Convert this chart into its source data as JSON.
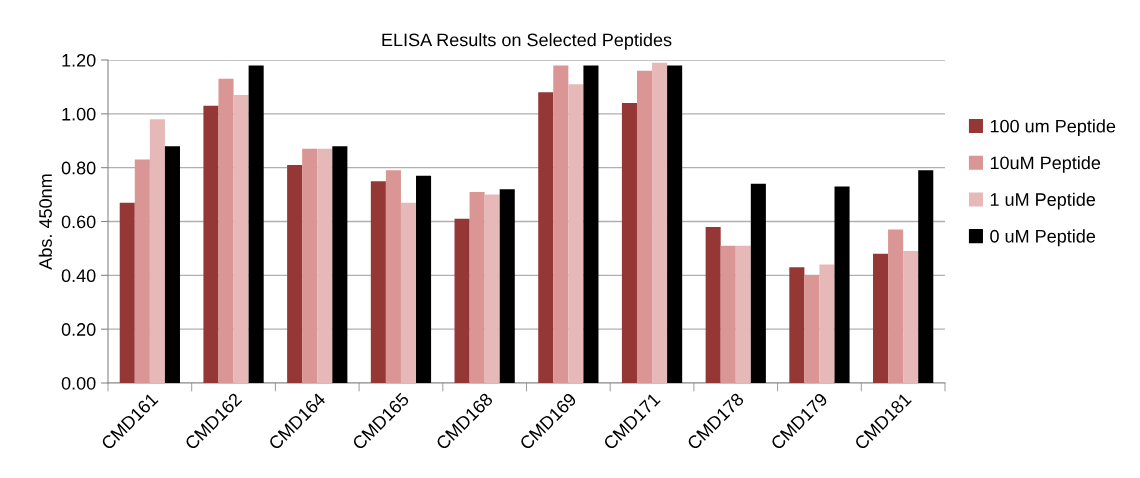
{
  "chart_data": {
    "type": "bar",
    "title": "ELISA Results on Selected Peptides",
    "ylabel": "Abs. 450nm",
    "categories": [
      "CMD161",
      "CMD162",
      "CMD164",
      "CMD165",
      "CMD168",
      "CMD169",
      "CMD171",
      "CMD178",
      "CMD179",
      "CMD181"
    ],
    "series": [
      {
        "name": "100 um Peptide",
        "color": "#953735",
        "values": [
          0.67,
          1.03,
          0.81,
          0.75,
          0.61,
          1.08,
          1.04,
          0.58,
          0.43,
          0.48
        ]
      },
      {
        "name": "10uM Peptide",
        "color": "#d99694",
        "values": [
          0.83,
          1.13,
          0.87,
          0.79,
          0.71,
          1.18,
          1.16,
          0.51,
          0.4,
          0.57
        ]
      },
      {
        "name": "1 uM Peptide",
        "color": "#e6b9b8",
        "values": [
          0.98,
          1.07,
          0.87,
          0.67,
          0.7,
          1.11,
          1.19,
          0.51,
          0.44,
          0.49
        ]
      },
      {
        "name": "0 uM Peptide",
        "color": "#000000",
        "values": [
          0.88,
          1.18,
          0.88,
          0.77,
          0.72,
          1.18,
          1.18,
          0.74,
          0.73,
          0.79
        ]
      }
    ],
    "ylim": [
      0,
      1.2
    ],
    "yticks": [
      {
        "value": 0,
        "label": "0.00"
      },
      {
        "value": 0.2,
        "label": "0.20"
      },
      {
        "value": 0.4,
        "label": "0.40"
      },
      {
        "value": 0.6,
        "label": "0.60"
      },
      {
        "value": 0.8,
        "label": "0.80"
      },
      {
        "value": 1.0,
        "label": "1.00"
      },
      {
        "value": 1.2,
        "label": "1.20"
      }
    ],
    "grid": "y",
    "legend": "right"
  }
}
